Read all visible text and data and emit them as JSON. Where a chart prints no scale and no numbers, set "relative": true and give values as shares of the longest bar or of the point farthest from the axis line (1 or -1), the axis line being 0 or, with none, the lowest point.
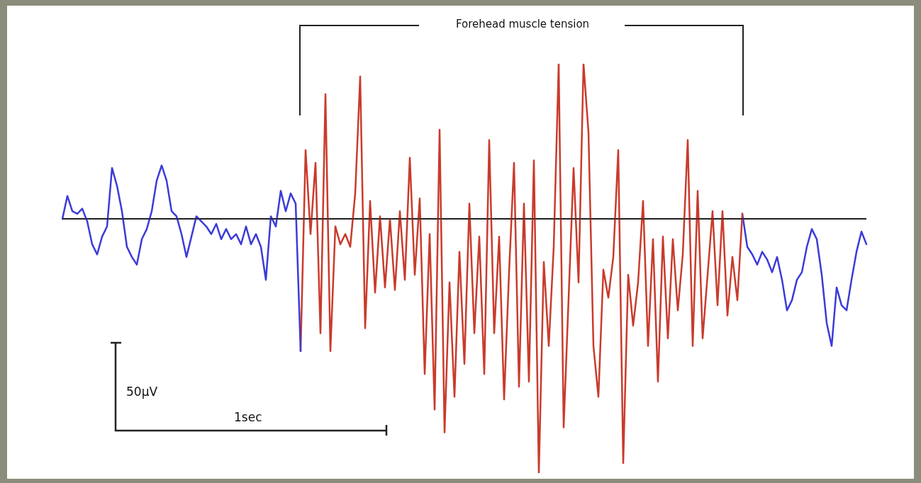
{
  "chart_data": {
    "type": "line",
    "relative": true,
    "legend": false,
    "marker": "none",
    "line_style": "solid",
    "annotations": [
      "Forehead muscle tension",
      "50µV",
      "1sec"
    ],
    "categories": [
      null,
      null,
      null,
      null,
      null,
      null,
      null,
      null,
      null,
      null,
      null,
      null,
      null,
      null,
      null,
      null,
      null,
      null,
      null,
      null,
      null,
      null,
      null,
      null,
      null,
      null,
      null,
      null,
      null,
      null,
      null,
      null,
      null,
      null,
      null,
      null,
      null,
      null,
      null,
      null,
      null,
      null,
      null,
      null,
      null,
      null,
      null,
      null,
      null,
      null,
      null,
      null,
      null,
      null,
      null,
      null,
      null,
      null,
      null,
      null,
      null,
      null,
      null,
      null,
      null,
      null,
      null,
      null,
      null,
      null,
      null,
      null,
      null,
      null,
      null,
      null,
      null,
      null,
      null,
      null,
      null,
      null,
      null,
      null,
      null,
      null,
      null,
      null,
      null,
      null,
      null,
      null,
      null,
      null,
      null,
      null,
      null,
      null,
      null,
      null,
      null,
      null,
      null,
      null,
      null,
      null,
      null,
      null,
      null,
      null,
      null,
      null,
      null,
      null,
      null,
      null,
      null,
      null,
      null,
      null,
      null,
      null,
      null,
      null,
      null,
      null,
      null,
      null,
      null,
      null,
      null,
      null,
      null,
      null,
      null,
      null,
      null,
      null,
      null,
      null,
      null,
      null,
      null,
      null,
      null,
      null,
      null,
      null,
      null,
      null,
      null,
      null,
      null,
      null,
      null,
      null,
      null,
      null,
      null,
      null,
      null,
      null,
      null
    ],
    "series": [
      {
        "color": "#3b3bd8",
        "values": [
          0,
          0.09,
          0.03,
          0.02,
          0.04,
          -0.01,
          -0.1,
          -0.14,
          -0.07,
          -0.03,
          0.2,
          0.13,
          0.03,
          -0.11,
          -0.15,
          -0.18,
          -0.08,
          -0.04,
          0.03,
          0.15,
          0.21,
          0.15,
          0.03,
          0.01,
          -0.06,
          -0.15,
          -0.07,
          0.01,
          -0.01,
          -0.03,
          -0.06,
          -0.02,
          -0.08,
          -0.04,
          -0.08,
          -0.06,
          -0.1,
          -0.03,
          -0.1,
          -0.06,
          -0.11,
          -0.24,
          0.01,
          -0.03,
          0.11,
          0.03,
          0.1,
          0.06,
          -0.52,
          null,
          null,
          null,
          null,
          null,
          null,
          null,
          null,
          null,
          null,
          null,
          null,
          null,
          null,
          null,
          null,
          null,
          null,
          null,
          null,
          null,
          null,
          null,
          null,
          null,
          null,
          null,
          null,
          null,
          null,
          null,
          null,
          null,
          null,
          null,
          null,
          null,
          null,
          null,
          null,
          null,
          null,
          null,
          null,
          null,
          null,
          null,
          null,
          null,
          null,
          null,
          null,
          null,
          null,
          null,
          null,
          null,
          null,
          null,
          null,
          null,
          null,
          null,
          null,
          null,
          null,
          null,
          null,
          null,
          null,
          null,
          null,
          null,
          null,
          null,
          null,
          null,
          null,
          null,
          null,
          null,
          null,
          null,
          null,
          null,
          null,
          null,
          null,
          null,
          null,
          null,
          null,
          null,
          null,
          null,
          null,
          null,
          null,
          null,
          null,
          null,
          null,
          null,
          null,
          null,
          null,
          null,
          null,
          null,
          null,
          null,
          null,
          null,
          null
        ]
      },
      {
        "color": "#c93b2c",
        "values": [
          null,
          null,
          null,
          null,
          null,
          null,
          null,
          null,
          null,
          null,
          null,
          null,
          null,
          null,
          null,
          null,
          null,
          null,
          null,
          null,
          null,
          null,
          null,
          null,
          null,
          null,
          null,
          null,
          null,
          null,
          null,
          null,
          null,
          null,
          null,
          null,
          null,
          null,
          null,
          null,
          null,
          null,
          null,
          null,
          null,
          null,
          null,
          null,
          -0.52,
          0.27,
          -0.06,
          0.22,
          -0.45,
          0.49,
          -0.52,
          -0.03,
          -0.1,
          -0.06,
          -0.11,
          0.1,
          0.56,
          -0.43,
          0.07,
          -0.29,
          0.01,
          -0.27,
          0,
          -0.28,
          0.03,
          -0.24,
          0.24,
          -0.22,
          0.08,
          -0.61,
          -0.06,
          -0.75,
          0.35,
          -0.84,
          -0.25,
          -0.7,
          -0.13,
          -0.57,
          0.06,
          -0.45,
          -0.07,
          -0.61,
          0.31,
          -0.45,
          -0.07,
          -0.71,
          -0.21,
          0.22,
          -0.66,
          0.06,
          -0.64,
          0.23,
          -1,
          -0.17,
          -0.5,
          -0.11,
          0.61,
          -0.82,
          -0.31,
          0.2,
          -0.25,
          0.61,
          0.34,
          -0.5,
          -0.7,
          -0.2,
          -0.31,
          -0.15,
          0.27,
          -0.96,
          -0.22,
          -0.42,
          -0.25,
          0.07,
          -0.5,
          -0.08,
          -0.64,
          -0.07,
          -0.47,
          -0.08,
          -0.36,
          -0.14,
          0.31,
          -0.5,
          0.11,
          -0.47,
          -0.22,
          0.03,
          -0.34,
          0.03,
          -0.38,
          -0.15,
          -0.32,
          0.02,
          null,
          null,
          null,
          null,
          null,
          null,
          null,
          null,
          null,
          null,
          null,
          null,
          null,
          null,
          null,
          null,
          null,
          null,
          null,
          null,
          null,
          null,
          null,
          null,
          null
        ]
      },
      {
        "color": "#3b3bd8",
        "values": [
          null,
          null,
          null,
          null,
          null,
          null,
          null,
          null,
          null,
          null,
          null,
          null,
          null,
          null,
          null,
          null,
          null,
          null,
          null,
          null,
          null,
          null,
          null,
          null,
          null,
          null,
          null,
          null,
          null,
          null,
          null,
          null,
          null,
          null,
          null,
          null,
          null,
          null,
          null,
          null,
          null,
          null,
          null,
          null,
          null,
          null,
          null,
          null,
          null,
          null,
          null,
          null,
          null,
          null,
          null,
          null,
          null,
          null,
          null,
          null,
          null,
          null,
          null,
          null,
          null,
          null,
          null,
          null,
          null,
          null,
          null,
          null,
          null,
          null,
          null,
          null,
          null,
          null,
          null,
          null,
          null,
          null,
          null,
          null,
          null,
          null,
          null,
          null,
          null,
          null,
          null,
          null,
          null,
          null,
          null,
          null,
          null,
          null,
          null,
          null,
          null,
          null,
          null,
          null,
          null,
          null,
          null,
          null,
          null,
          null,
          null,
          null,
          null,
          null,
          null,
          null,
          null,
          null,
          null,
          null,
          null,
          null,
          null,
          null,
          null,
          null,
          null,
          null,
          null,
          null,
          null,
          null,
          null,
          null,
          null,
          null,
          null,
          0.02,
          -0.11,
          -0.14,
          -0.18,
          -0.13,
          -0.16,
          -0.21,
          -0.15,
          -0.24,
          -0.36,
          -0.32,
          -0.24,
          -0.21,
          -0.11,
          -0.04,
          -0.08,
          -0.22,
          -0.41,
          -0.5,
          -0.27,
          -0.34,
          -0.36,
          -0.24,
          -0.13,
          -0.05,
          -0.1
        ]
      }
    ]
  }
}
